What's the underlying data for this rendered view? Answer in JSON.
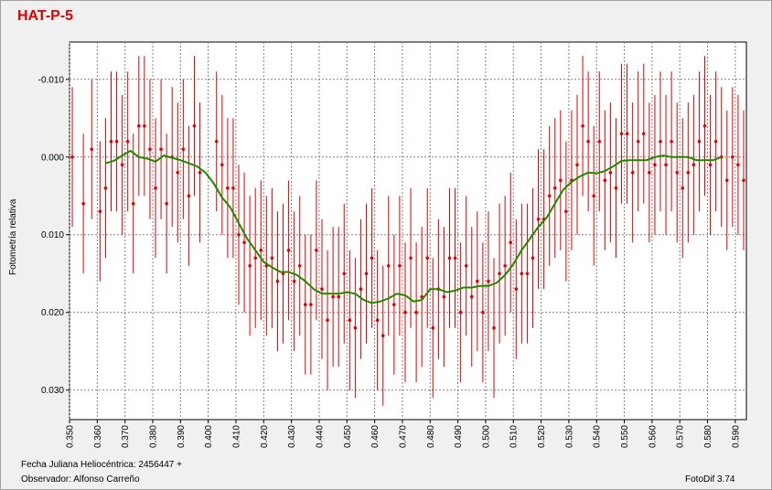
{
  "window": {
    "title": "HAT-P-5",
    "jd_label": "Fecha Juliana Heliocéntrica: 2456447 +",
    "observer_label": "Observador: Alfonso Carreño",
    "software_label": "FotoDif 3.74"
  },
  "colors": {
    "title": "#e00000",
    "points": "#e00000",
    "errorbars": "#e00000",
    "trend": "#1a8a00",
    "grid": "#808080",
    "plot_bg": "#ffffff"
  },
  "chart_data": {
    "type": "scatter",
    "title": "HAT-P-5",
    "xlabel": "Fecha Juliana Heliocéntrica: 2456447 +",
    "ylabel": "Fotometría relativa",
    "xlim": [
      0.35,
      0.594
    ],
    "ylim": [
      -0.0148,
      0.0338
    ],
    "y_inverted": true,
    "grid": true,
    "x_ticks": [
      "0.350",
      "0.360",
      "0.370",
      "0.380",
      "0.390",
      "0.400",
      "0.410",
      "0.420",
      "0.430",
      "0.440",
      "0.450",
      "0.460",
      "0.470",
      "0.480",
      "0.490",
      "0.500",
      "0.510",
      "0.520",
      "0.530",
      "0.540",
      "0.550",
      "0.560",
      "0.570",
      "0.580",
      "0.590"
    ],
    "y_ticks": [
      "-0.010",
      "0.000",
      "0.010",
      "0.020",
      "0.030"
    ],
    "series": [
      {
        "style": "points-with-errorbars",
        "error": 0.009,
        "x": [
          0.351,
          0.355,
          0.358,
          0.361,
          0.363,
          0.365,
          0.367,
          0.369,
          0.371,
          0.373,
          0.375,
          0.377,
          0.379,
          0.381,
          0.383,
          0.385,
          0.387,
          0.389,
          0.391,
          0.393,
          0.395,
          0.397,
          0.403,
          0.405,
          0.407,
          0.409,
          0.411,
          0.413,
          0.415,
          0.417,
          0.419,
          0.421,
          0.423,
          0.425,
          0.427,
          0.429,
          0.431,
          0.433,
          0.435,
          0.437,
          0.439,
          0.441,
          0.443,
          0.445,
          0.447,
          0.449,
          0.451,
          0.453,
          0.455,
          0.457,
          0.459,
          0.461,
          0.463,
          0.465,
          0.467,
          0.469,
          0.471,
          0.473,
          0.475,
          0.477,
          0.479,
          0.481,
          0.483,
          0.485,
          0.487,
          0.489,
          0.491,
          0.493,
          0.495,
          0.497,
          0.499,
          0.501,
          0.503,
          0.505,
          0.507,
          0.509,
          0.511,
          0.513,
          0.515,
          0.517,
          0.519,
          0.521,
          0.523,
          0.525,
          0.527,
          0.529,
          0.531,
          0.533,
          0.535,
          0.537,
          0.539,
          0.541,
          0.543,
          0.545,
          0.547,
          0.549,
          0.551,
          0.553,
          0.555,
          0.557,
          0.559,
          0.561,
          0.563,
          0.565,
          0.567,
          0.569,
          0.571,
          0.573,
          0.575,
          0.577,
          0.579,
          0.581,
          0.583,
          0.585,
          0.587,
          0.589,
          0.591,
          0.593
        ],
        "y": [
          0.0,
          0.006,
          -0.001,
          0.007,
          0.004,
          -0.002,
          -0.002,
          0.001,
          -0.002,
          0.006,
          -0.004,
          -0.004,
          -0.001,
          0.004,
          -0.001,
          0.006,
          0.0,
          0.002,
          -0.001,
          0.005,
          -0.004,
          0.002,
          -0.002,
          0.001,
          0.004,
          0.004,
          0.01,
          0.011,
          0.014,
          0.013,
          0.012,
          0.014,
          0.013,
          0.016,
          0.015,
          0.012,
          0.016,
          0.014,
          0.019,
          0.019,
          0.012,
          0.017,
          0.021,
          0.018,
          0.018,
          0.015,
          0.021,
          0.022,
          0.017,
          0.015,
          0.013,
          0.021,
          0.023,
          0.014,
          0.019,
          0.014,
          0.02,
          0.013,
          0.02,
          0.018,
          0.013,
          0.022,
          0.017,
          0.018,
          0.013,
          0.013,
          0.02,
          0.014,
          0.018,
          0.016,
          0.02,
          0.016,
          0.022,
          0.015,
          0.014,
          0.011,
          0.017,
          0.015,
          0.015,
          0.013,
          0.008,
          0.008,
          0.005,
          0.004,
          0.003,
          0.007,
          0.003,
          0.001,
          -0.004,
          -0.002,
          0.005,
          -0.002,
          0.003,
          0.002,
          0.004,
          -0.003,
          -0.003,
          0.002,
          -0.002,
          -0.003,
          0.002,
          0.001,
          -0.002,
          0.001,
          -0.002,
          0.002,
          0.004,
          0.002,
          0.001,
          -0.002,
          -0.004,
          0.001,
          -0.002,
          0.0,
          0.003,
          0.0,
          0.001,
          0.003
        ]
      },
      {
        "style": "line",
        "x": [
          0.363,
          0.366,
          0.369,
          0.372,
          0.375,
          0.378,
          0.381,
          0.384,
          0.387,
          0.39,
          0.393,
          0.396,
          0.399,
          0.402,
          0.405,
          0.408,
          0.411,
          0.414,
          0.417,
          0.42,
          0.423,
          0.426,
          0.429,
          0.432,
          0.435,
          0.438,
          0.441,
          0.444,
          0.447,
          0.45,
          0.453,
          0.456,
          0.459,
          0.462,
          0.465,
          0.468,
          0.471,
          0.474,
          0.477,
          0.48,
          0.483,
          0.486,
          0.489,
          0.492,
          0.495,
          0.498,
          0.501,
          0.504,
          0.507,
          0.51,
          0.513,
          0.516,
          0.519,
          0.522,
          0.525,
          0.528,
          0.531,
          0.534,
          0.537,
          0.54,
          0.543,
          0.546,
          0.549,
          0.552,
          0.555,
          0.558,
          0.561,
          0.564,
          0.567,
          0.57,
          0.573,
          0.576,
          0.579,
          0.582,
          0.585
        ],
        "y": [
          0.0008,
          0.0005,
          -0.0002,
          -0.0008,
          0.0,
          0.0002,
          0.0006,
          -0.0002,
          0.0001,
          0.0004,
          0.0008,
          0.0012,
          0.002,
          0.0034,
          0.0052,
          0.0065,
          0.0085,
          0.0105,
          0.012,
          0.0135,
          0.0142,
          0.0148,
          0.0148,
          0.0152,
          0.016,
          0.017,
          0.0176,
          0.0176,
          0.0176,
          0.0174,
          0.0176,
          0.0184,
          0.0188,
          0.0186,
          0.0182,
          0.0176,
          0.0178,
          0.0186,
          0.0184,
          0.017,
          0.017,
          0.0174,
          0.0172,
          0.0168,
          0.0168,
          0.0166,
          0.0166,
          0.0162,
          0.0152,
          0.0138,
          0.012,
          0.0105,
          0.009,
          0.0078,
          0.006,
          0.0042,
          0.0032,
          0.0025,
          0.002,
          0.0021,
          0.0018,
          0.0012,
          0.0005,
          0.0004,
          0.0004,
          0.0004,
          0.0,
          -0.0002,
          0.0,
          0.0,
          0.0,
          0.0004,
          0.0004,
          0.0004,
          0.0
        ]
      }
    ]
  }
}
